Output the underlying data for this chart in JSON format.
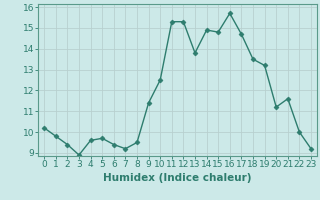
{
  "x": [
    0,
    1,
    2,
    3,
    4,
    5,
    6,
    7,
    8,
    9,
    10,
    11,
    12,
    13,
    14,
    15,
    16,
    17,
    18,
    19,
    20,
    21,
    22,
    23
  ],
  "y": [
    10.2,
    9.8,
    9.4,
    8.9,
    9.6,
    9.7,
    9.4,
    9.2,
    9.5,
    11.4,
    12.5,
    15.3,
    15.3,
    13.8,
    14.9,
    14.8,
    15.7,
    14.7,
    13.5,
    13.2,
    11.2,
    11.6,
    10.0,
    9.2
  ],
  "line_color": "#2e7d6e",
  "marker": "D",
  "marker_size": 2.5,
  "bg_color": "#cce9e8",
  "grid_color": "#b8d0cf",
  "xlabel": "Humidex (Indice chaleur)",
  "xlim": [
    -0.5,
    23.5
  ],
  "ylim": [
    8.85,
    16.15
  ],
  "yticks": [
    9,
    10,
    11,
    12,
    13,
    14,
    15,
    16
  ],
  "xticks": [
    0,
    1,
    2,
    3,
    4,
    5,
    6,
    7,
    8,
    9,
    10,
    11,
    12,
    13,
    14,
    15,
    16,
    17,
    18,
    19,
    20,
    21,
    22,
    23
  ],
  "xlabel_fontsize": 7.5,
  "tick_fontsize": 6.5,
  "line_width": 1.0
}
